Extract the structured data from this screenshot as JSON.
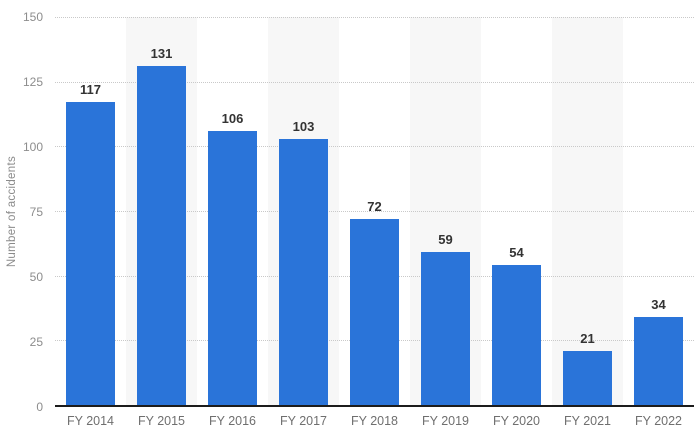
{
  "chart_data": {
    "type": "bar",
    "title": "",
    "xlabel": "",
    "ylabel": "Number of accidents",
    "categories": [
      "FY 2014",
      "FY 2015",
      "FY 2016",
      "FY 2017",
      "FY 2018",
      "FY 2019",
      "FY 2020",
      "FY 2021",
      "FY 2022"
    ],
    "values": [
      117,
      131,
      106,
      103,
      72,
      59,
      54,
      21,
      34
    ],
    "ylim": [
      0,
      150
    ],
    "yticks": [
      0,
      25,
      50,
      75,
      100,
      125,
      150
    ],
    "grid": "horizontal-dotted",
    "legend": "none",
    "plot_bands": "alternating vertical stripes behind every second category",
    "colors": {
      "bar": "#2a74d9",
      "band": "#f7f7f7",
      "gridline": "#c9c9c9",
      "axis": "#1c1c1c",
      "value_label": "#333333",
      "x_label": "#6f6f6f",
      "y_tick": "#8d8d8d",
      "y_title": "#8a8a8a",
      "background": "#ffffff"
    }
  }
}
